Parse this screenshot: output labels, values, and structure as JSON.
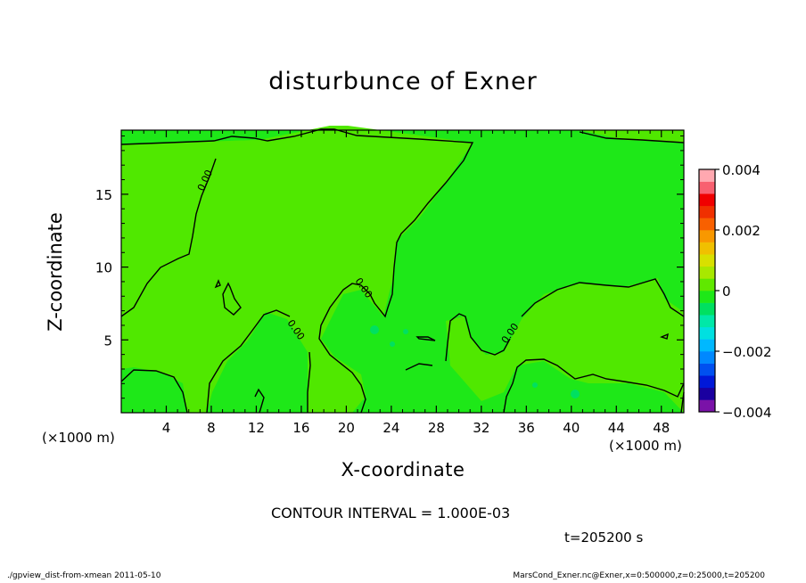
{
  "chart_data": {
    "type": "heatmap",
    "title": "disturbunce of Exner",
    "xlabel": "X-coordinate",
    "ylabel": "Z-coordinate",
    "x_unit_label": "(×1000 m)",
    "xlim": [
      0,
      50
    ],
    "ylim": [
      0,
      19.4
    ],
    "x_ticks": [
      "4",
      "8",
      "12",
      "16",
      "20",
      "24",
      "28",
      "32",
      "36",
      "40",
      "44",
      "48"
    ],
    "y_ticks": [
      "5",
      "10",
      "15"
    ],
    "colorbar": {
      "range": [
        -0.004,
        0.004
      ],
      "tick_labels": [
        "0.004",
        "0.002",
        "0",
        "−0.002",
        "−0.004"
      ],
      "colors": [
        "#7a12a8",
        "#1a00a0",
        "#0018d8",
        "#0050f0",
        "#0088ff",
        "#00b8ff",
        "#00e0e0",
        "#00e8a8",
        "#00e060",
        "#1ee818",
        "#60e800",
        "#a8e800",
        "#d8e000",
        "#f0c000",
        "#f89800",
        "#f86000",
        "#f03000",
        "#f00000",
        "#f86070",
        "#ffa8b0"
      ]
    },
    "field_colors": {
      "background": "#1ee818",
      "near_zero_region": "#50e800",
      "slightly_negative_spots": "#00e060"
    },
    "contour_labels": [
      "0.00",
      "0.00",
      "0.00",
      "0.00",
      "0.00"
    ],
    "contour_interval_text": "CONTOUR INTERVAL = 1.000E-03",
    "time_text": "t=205200 s"
  },
  "footer": {
    "left": "./gpview_dist-from-xmean  2011-05-10",
    "right": "MarsCond_Exner.nc@Exner,x=0:500000,z=0:25000,t=205200"
  }
}
